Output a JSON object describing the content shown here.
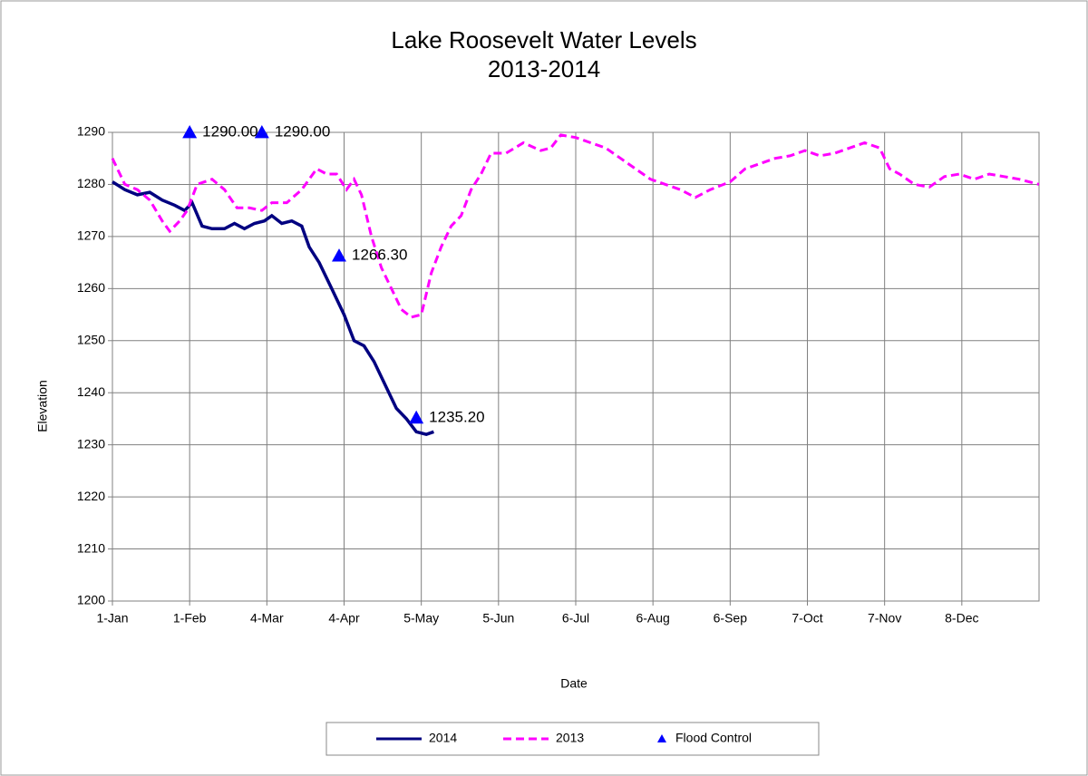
{
  "chart_data": {
    "type": "line",
    "title": "Lake Roosevelt Water Levels",
    "subtitle": "2013-2014",
    "xlabel": "Date",
    "ylabel": "Elevation",
    "xlim": [
      0,
      372
    ],
    "ylim": [
      1200,
      1290
    ],
    "xticks": [
      {
        "value": 0,
        "label": "1-Jan"
      },
      {
        "value": 31,
        "label": "1-Feb"
      },
      {
        "value": 62,
        "label": "4-Mar"
      },
      {
        "value": 93,
        "label": "4-Apr"
      },
      {
        "value": 124,
        "label": "5-May"
      },
      {
        "value": 155,
        "label": "5-Jun"
      },
      {
        "value": 186,
        "label": "6-Jul"
      },
      {
        "value": 217,
        "label": "6-Aug"
      },
      {
        "value": 248,
        "label": "6-Sep"
      },
      {
        "value": 279,
        "label": "7-Oct"
      },
      {
        "value": 310,
        "label": "7-Nov"
      },
      {
        "value": 341,
        "label": "8-Dec"
      }
    ],
    "yticks": [
      1200,
      1210,
      1220,
      1230,
      1240,
      1250,
      1260,
      1270,
      1280,
      1290
    ],
    "grid": true,
    "legend": "bottom",
    "series": [
      {
        "name": "2014",
        "type": "line",
        "style": "solid",
        "color": "#000080",
        "x": [
          0,
          5,
          10,
          15,
          20,
          25,
          29,
          32,
          36,
          40,
          45,
          49,
          53,
          57,
          61,
          64,
          68,
          72,
          76,
          79,
          83,
          88,
          93,
          97,
          101,
          105,
          110,
          114,
          118,
          122,
          126,
          129
        ],
        "values": [
          1280.5,
          1279,
          1278,
          1278.5,
          1277,
          1276,
          1275,
          1276.5,
          1272,
          1271.5,
          1271.5,
          1272.5,
          1271.5,
          1272.5,
          1273,
          1274,
          1272.5,
          1273,
          1272,
          1268,
          1265,
          1260,
          1255,
          1250,
          1249,
          1246,
          1241,
          1237,
          1235,
          1232.5,
          1232,
          1232.5
        ]
      },
      {
        "name": "2013",
        "type": "line",
        "style": "dashed",
        "color": "#ff00ff",
        "x": [
          0,
          5,
          10,
          15,
          20,
          23,
          27,
          30,
          34,
          40,
          45,
          50,
          55,
          60,
          64,
          70,
          76,
          82,
          86,
          90,
          94,
          97,
          100,
          104,
          108,
          112,
          116,
          120,
          124,
          128,
          132,
          136,
          140,
          144,
          148,
          152,
          158,
          165,
          172,
          176,
          180,
          186,
          192,
          198,
          204,
          210,
          216,
          222,
          228,
          234,
          240,
          248,
          254,
          260,
          266,
          272,
          278,
          284,
          290,
          296,
          302,
          308,
          312,
          316,
          322,
          328,
          334,
          340,
          346,
          352,
          358,
          364,
          372
        ],
        "values": [
          1285,
          1280,
          1279,
          1277,
          1273,
          1271,
          1273,
          1275,
          1280,
          1281,
          1279,
          1275.5,
          1275.5,
          1275,
          1276.5,
          1276.5,
          1279,
          1283,
          1282,
          1282,
          1279,
          1281,
          1278,
          1270,
          1264,
          1260,
          1256,
          1254.5,
          1255,
          1263,
          1268,
          1272,
          1274,
          1279,
          1282,
          1286,
          1286,
          1288,
          1286.5,
          1287,
          1289.5,
          1289,
          1288,
          1287,
          1285,
          1283,
          1281,
          1280,
          1279,
          1277.5,
          1279,
          1280.5,
          1283,
          1284,
          1285,
          1285.5,
          1286.5,
          1285.5,
          1286,
          1287,
          1288,
          1287,
          1283,
          1282,
          1280,
          1279.5,
          1281.5,
          1282,
          1281,
          1282,
          1281.5,
          1281,
          1280
        ]
      },
      {
        "name": "Flood Control",
        "type": "scatter",
        "color": "#0000ff",
        "x": [
          31,
          60,
          91,
          122
        ],
        "values": [
          1290,
          1290,
          1266.3,
          1235.2
        ],
        "value_labels": [
          "1290.00",
          "1290.00",
          "1266.30",
          "1235.20"
        ]
      }
    ]
  }
}
